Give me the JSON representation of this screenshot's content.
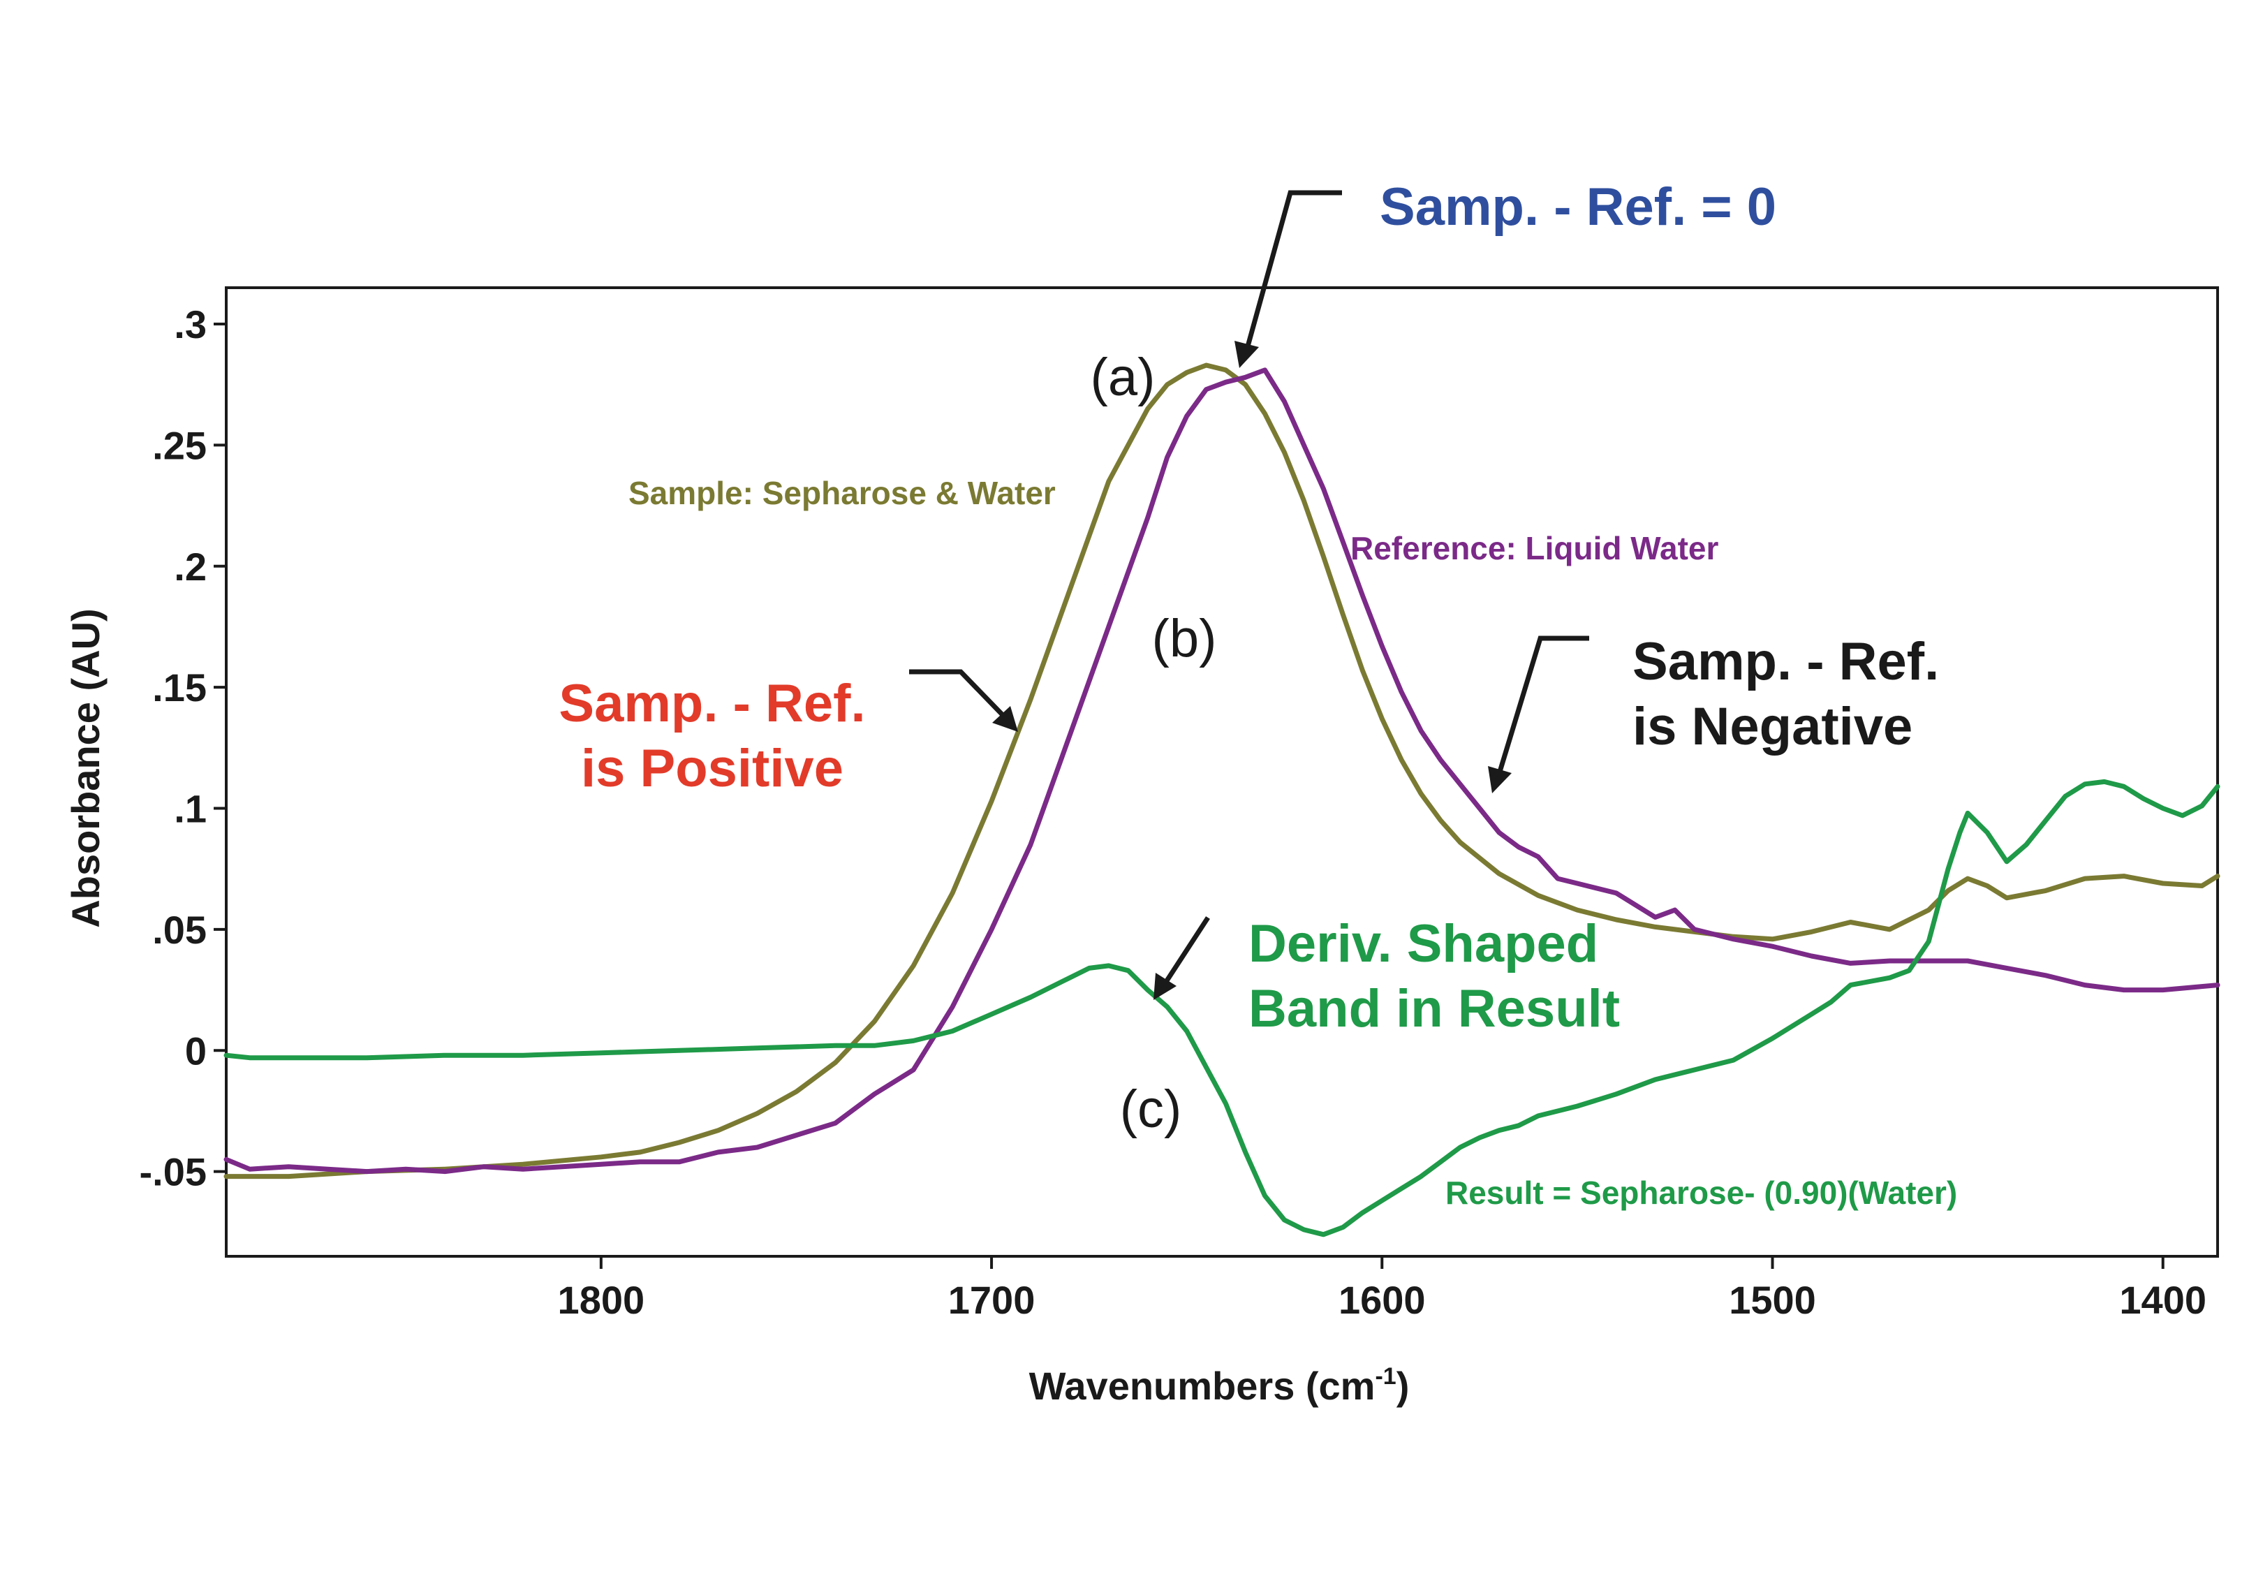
{
  "chart_data": {
    "type": "line",
    "xlabel": "Wavenumbers (cm",
    "xlabel_sup": "-1",
    "xlabel_end": ")",
    "ylabel": "Absorbance (AU)",
    "xlim": [
      1896,
      1386
    ],
    "ylim": [
      -0.085,
      0.315
    ],
    "x_ticks": [
      1800,
      1700,
      1600,
      1500,
      1400
    ],
    "x_tick_labels": [
      "1800",
      "1700",
      "1600",
      "1500",
      "1400"
    ],
    "y_ticks": [
      0.3,
      0.25,
      0.2,
      0.15,
      0.1,
      0.05,
      0,
      -0.05
    ],
    "y_tick_labels": [
      ".3",
      ".25",
      ".2",
      ".15",
      ".1",
      ".05",
      "0",
      "-.05"
    ],
    "grid": false,
    "colors": {
      "sample": "#7b7a33",
      "reference": "#7b2a88",
      "result": "#1f9a48",
      "zero_note": "#2f4f9e",
      "positive_note": "#e23b2a",
      "negative_note": "#1a1a1a",
      "axis": "#1a1a1a"
    },
    "series": [
      {
        "name": "sample",
        "color_key": "sample",
        "x": [
          1896,
          1880,
          1860,
          1840,
          1820,
          1800,
          1790,
          1780,
          1770,
          1760,
          1750,
          1740,
          1730,
          1720,
          1710,
          1700,
          1690,
          1680,
          1670,
          1660,
          1655,
          1650,
          1645,
          1640,
          1635,
          1630,
          1625,
          1620,
          1615,
          1610,
          1605,
          1600,
          1595,
          1590,
          1585,
          1580,
          1570,
          1560,
          1550,
          1540,
          1530,
          1520,
          1510,
          1500,
          1490,
          1480,
          1470,
          1460,
          1455,
          1450,
          1445,
          1440,
          1430,
          1420,
          1410,
          1400,
          1390,
          1386
        ],
        "y": [
          -0.052,
          -0.052,
          -0.05,
          -0.049,
          -0.047,
          -0.044,
          -0.042,
          -0.038,
          -0.033,
          -0.026,
          -0.017,
          -0.005,
          0.012,
          0.035,
          0.065,
          0.103,
          0.145,
          0.19,
          0.235,
          0.265,
          0.275,
          0.28,
          0.283,
          0.281,
          0.275,
          0.263,
          0.247,
          0.227,
          0.204,
          0.18,
          0.157,
          0.137,
          0.12,
          0.106,
          0.095,
          0.086,
          0.073,
          0.064,
          0.058,
          0.054,
          0.051,
          0.049,
          0.047,
          0.046,
          0.049,
          0.053,
          0.05,
          0.058,
          0.066,
          0.071,
          0.068,
          0.063,
          0.066,
          0.071,
          0.072,
          0.069,
          0.068,
          0.072
        ]
      },
      {
        "name": "reference",
        "color_key": "reference",
        "x": [
          1896,
          1890,
          1880,
          1870,
          1860,
          1850,
          1840,
          1830,
          1820,
          1810,
          1800,
          1790,
          1780,
          1770,
          1760,
          1750,
          1740,
          1730,
          1720,
          1710,
          1700,
          1690,
          1680,
          1670,
          1660,
          1655,
          1650,
          1645,
          1640,
          1635,
          1630,
          1625,
          1620,
          1615,
          1610,
          1605,
          1600,
          1595,
          1590,
          1585,
          1580,
          1575,
          1570,
          1565,
          1560,
          1555,
          1550,
          1540,
          1530,
          1525,
          1520,
          1510,
          1500,
          1490,
          1480,
          1470,
          1460,
          1450,
          1440,
          1430,
          1420,
          1410,
          1400,
          1386
        ],
        "y": [
          -0.045,
          -0.049,
          -0.048,
          -0.049,
          -0.05,
          -0.049,
          -0.05,
          -0.048,
          -0.049,
          -0.048,
          -0.047,
          -0.046,
          -0.046,
          -0.042,
          -0.04,
          -0.035,
          -0.03,
          -0.018,
          -0.008,
          0.018,
          0.05,
          0.085,
          0.13,
          0.175,
          0.22,
          0.245,
          0.262,
          0.273,
          0.276,
          0.278,
          0.281,
          0.268,
          0.25,
          0.232,
          0.21,
          0.188,
          0.167,
          0.148,
          0.132,
          0.12,
          0.11,
          0.1,
          0.09,
          0.084,
          0.08,
          0.071,
          0.069,
          0.065,
          0.055,
          0.058,
          0.05,
          0.046,
          0.043,
          0.039,
          0.036,
          0.037,
          0.037,
          0.037,
          0.034,
          0.031,
          0.027,
          0.025,
          0.025,
          0.027
        ]
      },
      {
        "name": "result",
        "color_key": "result",
        "x": [
          1896,
          1890,
          1880,
          1860,
          1840,
          1820,
          1800,
          1780,
          1760,
          1740,
          1730,
          1720,
          1710,
          1700,
          1690,
          1680,
          1675,
          1670,
          1665,
          1660,
          1655,
          1650,
          1645,
          1640,
          1635,
          1630,
          1625,
          1620,
          1615,
          1610,
          1605,
          1600,
          1595,
          1590,
          1585,
          1580,
          1575,
          1570,
          1565,
          1560,
          1550,
          1540,
          1530,
          1520,
          1510,
          1500,
          1490,
          1485,
          1480,
          1470,
          1465,
          1460,
          1455,
          1452,
          1450,
          1445,
          1440,
          1435,
          1430,
          1425,
          1420,
          1415,
          1410,
          1405,
          1400,
          1395,
          1390,
          1386
        ],
        "y": [
          -0.002,
          -0.003,
          -0.003,
          -0.003,
          -0.002,
          -0.002,
          -0.001,
          0.0,
          0.001,
          0.002,
          0.002,
          0.004,
          0.008,
          0.015,
          0.022,
          0.03,
          0.034,
          0.035,
          0.033,
          0.025,
          0.018,
          0.008,
          -0.007,
          -0.022,
          -0.042,
          -0.06,
          -0.07,
          -0.074,
          -0.076,
          -0.073,
          -0.067,
          -0.062,
          -0.057,
          -0.052,
          -0.046,
          -0.04,
          -0.036,
          -0.033,
          -0.031,
          -0.027,
          -0.023,
          -0.018,
          -0.012,
          -0.008,
          -0.004,
          0.005,
          0.015,
          0.02,
          0.027,
          0.03,
          0.033,
          0.045,
          0.075,
          0.09,
          0.098,
          0.09,
          0.078,
          0.085,
          0.095,
          0.105,
          0.11,
          0.111,
          0.109,
          0.104,
          0.1,
          0.097,
          0.101,
          0.109
        ]
      }
    ],
    "annotations": {
      "zero_note": "Samp. - Ref. = 0",
      "positive_note_line1": "Samp. - Ref.",
      "positive_note_line2": "is Positive",
      "negative_note_line1": "Samp. - Ref.",
      "negative_note_line2": "is Negative",
      "deriv_note_line1": "Deriv. Shaped",
      "deriv_note_line2": "Band in Result",
      "sample_label": "Sample: Sepharose & Water",
      "reference_label": "Reference: Liquid Water",
      "result_label": "Result = Sepharose- (0.90)(Water)",
      "letter_a": "(a)",
      "letter_b": "(b)",
      "letter_c": "(c)"
    }
  }
}
